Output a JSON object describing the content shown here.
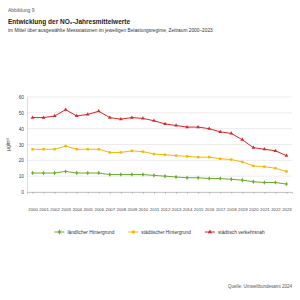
{
  "chart_data": {
    "type": "line",
    "figure_label": "Abbildung 9",
    "title": "Entwicklung der NO₂-Jahresmittelwerte",
    "subtitle": "im Mittel über ausgewählte Messstationen im jeweiligen Belastungsregime, Zeitraum 2000–2023",
    "y_label": "µg/m³",
    "source": "Quelle: Umweltbundesamt 2024",
    "categories": [
      "2000",
      "2001",
      "2002",
      "2003",
      "2004",
      "2005",
      "2006",
      "2007",
      "2008",
      "2009",
      "2010",
      "2011",
      "2012",
      "2013",
      "2014",
      "2015",
      "2016",
      "2017",
      "2018",
      "2019",
      "2020",
      "2021",
      "2022",
      "2023"
    ],
    "series": [
      {
        "name": "ländlicher Hintergrund",
        "color": "#6aab2e",
        "marker": "diamond",
        "values": [
          12,
          12,
          12,
          13,
          12,
          12,
          12,
          11,
          11,
          11,
          11,
          10.5,
          10,
          9.5,
          9,
          9,
          8.5,
          8.5,
          8,
          7.5,
          6.5,
          6,
          6,
          5
        ]
      },
      {
        "name": "städtischer Hintergrund",
        "color": "#f5b800",
        "marker": "square",
        "values": [
          27,
          27,
          27,
          29,
          27,
          27,
          27,
          25,
          25,
          26,
          25.5,
          24,
          23.5,
          23,
          22.5,
          22,
          22,
          21,
          20.5,
          19,
          16.5,
          16,
          15,
          13
        ]
      },
      {
        "name": "städtisch verkehrsnah",
        "color": "#d9262a",
        "marker": "triangle",
        "values": [
          47,
          47,
          48,
          52,
          48,
          49,
          51,
          47,
          46,
          47,
          46.5,
          45,
          43,
          42,
          41,
          41,
          40,
          38,
          37,
          33,
          28,
          27,
          26,
          23
        ]
      }
    ],
    "ylim": [
      0,
      60
    ],
    "yticks": [
      0,
      10,
      20,
      30,
      40,
      50,
      60
    ],
    "grid": true,
    "legend": "bottom"
  }
}
